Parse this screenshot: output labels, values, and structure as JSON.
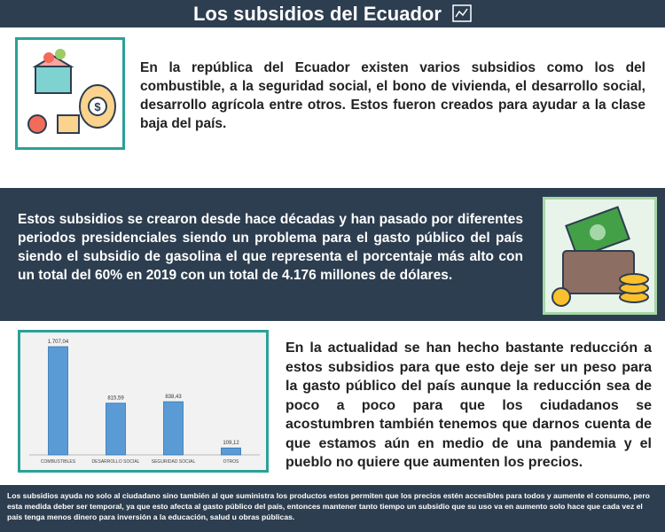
{
  "header": {
    "title": "Los subsidios del Ecuador"
  },
  "sections": [
    {
      "text": "En la república del Ecuador existen varios subsidios como los del combustible, a la seguridad social, el bono de vivienda, el desarrollo social, desarrollo agrícola entre otros. Estos fueron creados para ayudar a la clase baja del país."
    },
    {
      "text": "Estos subsidios se crearon desde hace décadas y han pasado por diferentes periodos presidenciales siendo un problema para el gasto público del país siendo el subsidio de gasolina el que representa el porcentaje más alto con un total del 60% en 2019 con un total de 4.176 millones de dólares."
    },
    {
      "text": "En la actualidad se han hecho bastante reducción a estos subsidios para que esto deje ser un peso para la gasto público del país aunque la reducción sea de poco a poco para que los ciudadanos se acostumbren también tenemos que darnos cuenta de que estamos aún en medio de una pandemia y el pueblo no quiere que aumenten los precios."
    }
  ],
  "chart_data": {
    "type": "bar",
    "categories": [
      "COMBUSTIBLES",
      "DESARROLLO SOCIAL",
      "SEGURIDAD SOCIAL",
      "OTROS"
    ],
    "values": [
      1707.04,
      815.59,
      838.43,
      109.12
    ],
    "value_labels": [
      "1.707,04",
      "815,59",
      "838,43",
      "109,12"
    ],
    "color": "#5b9bd5"
  },
  "footer": {
    "text": "Los subsidios ayuda no solo al ciudadano sino también al que suministra los productos estos permiten que los precios estén accesibles para todos y aumente el consumo, pero esta medida deber ser temporal, ya que esto afecta al gasto público del país, entonces mantener tanto tiempo un subsidio que su uso va en aumento solo hace que cada vez el país tenga menos dinero para inversión a la educación, salud u obras públicas."
  }
}
